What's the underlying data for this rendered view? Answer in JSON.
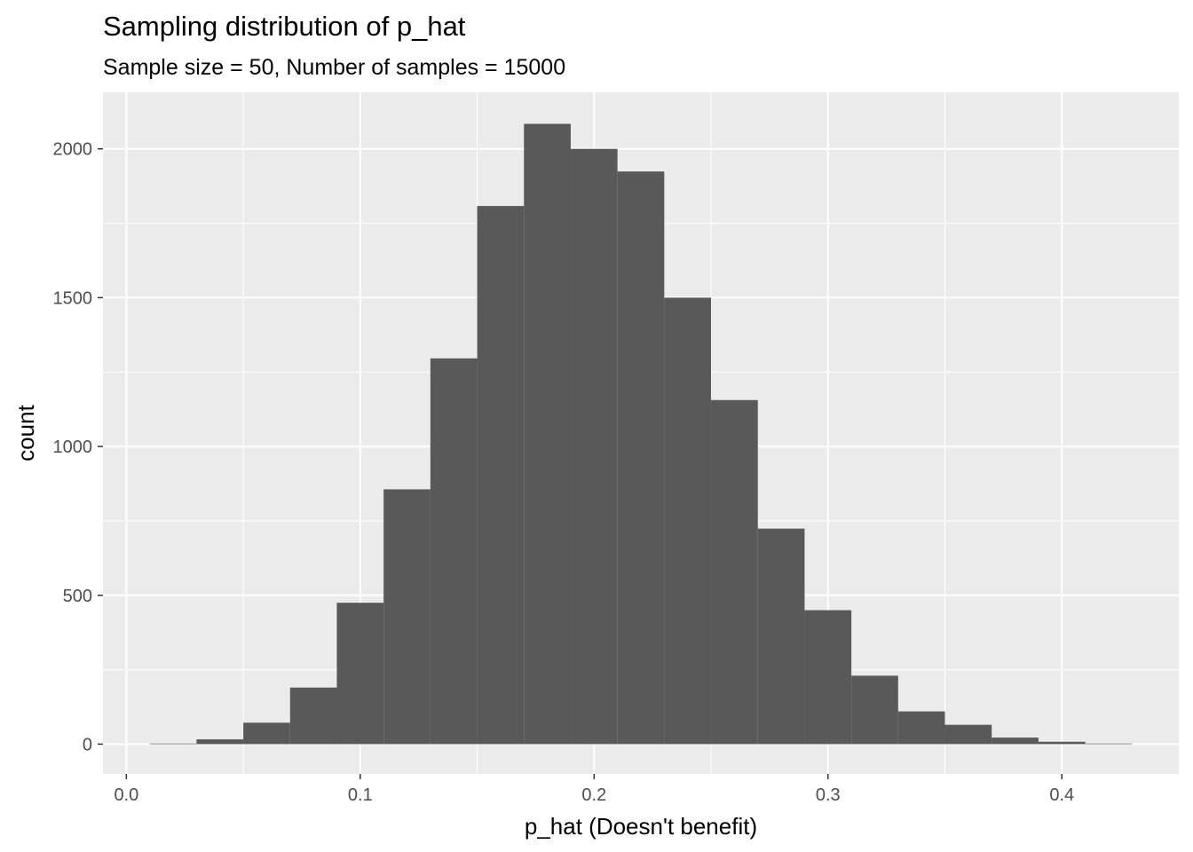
{
  "chart_data": {
    "type": "bar",
    "title": "Sampling distribution of p_hat",
    "subtitle": "Sample size = 50, Number of samples = 15000",
    "xlabel": "p_hat (Doesn't benefit)",
    "ylabel": "count",
    "xlim": [
      -0.01,
      0.45
    ],
    "ylim": [
      -100,
      2190
    ],
    "x_ticks": [
      {
        "value": 0.0,
        "label": "0.0"
      },
      {
        "value": 0.1,
        "label": "0.1"
      },
      {
        "value": 0.2,
        "label": "0.2"
      },
      {
        "value": 0.3,
        "label": "0.3"
      },
      {
        "value": 0.4,
        "label": "0.4"
      }
    ],
    "y_ticks": [
      {
        "value": 0,
        "label": "0"
      },
      {
        "value": 500,
        "label": "500"
      },
      {
        "value": 1000,
        "label": "1000"
      },
      {
        "value": 1500,
        "label": "1500"
      },
      {
        "value": 2000,
        "label": "2000"
      }
    ],
    "bin_width": 0.02,
    "bin_centers": [
      0.02,
      0.04,
      0.06,
      0.08,
      0.1,
      0.12,
      0.14,
      0.16,
      0.18,
      0.2,
      0.22,
      0.24,
      0.26,
      0.28,
      0.3,
      0.32,
      0.34,
      0.36,
      0.38,
      0.4,
      0.42
    ],
    "values": [
      2,
      16,
      72,
      190,
      475,
      856,
      1296,
      1808,
      2084,
      2000,
      1924,
      1500,
      1156,
      724,
      450,
      230,
      110,
      65,
      22,
      8,
      2
    ],
    "grid": true,
    "bar_color": "#595959",
    "panel_color": "#ebebeb",
    "grid_color": "#ffffff"
  }
}
